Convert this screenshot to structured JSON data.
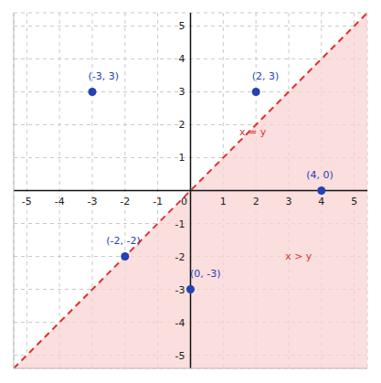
{
  "chart_data": {
    "type": "scatter",
    "xlim": [
      -5.4,
      5.4
    ],
    "ylim": [
      -5.4,
      5.4
    ],
    "xticks": [
      -5,
      -4,
      -3,
      -2,
      -1,
      0,
      1,
      2,
      3,
      4,
      5
    ],
    "yticks": [
      -5,
      -4,
      -3,
      -2,
      -1,
      0,
      1,
      2,
      3,
      4,
      5
    ],
    "grid": true,
    "boundary": {
      "x": [
        -5.4,
        5.4
      ],
      "y": [
        -5.4,
        5.4
      ],
      "color": "#e0312f",
      "line_style": "dashed"
    },
    "region": {
      "color": "#f9d3d3"
    },
    "points": {
      "x": [
        -3,
        2,
        4,
        -2,
        0
      ],
      "y": [
        3,
        3,
        0,
        -2,
        -3
      ],
      "labels": [
        "(-3, 3)",
        "(2, 3)",
        "(4, 0)",
        "(-2, -2)",
        "(0, -3)"
      ],
      "color": "#2541b2",
      "marker": "circle"
    },
    "annotations": [
      {
        "text": "x = y",
        "x": 1.9,
        "y": 1.8,
        "color": "#e0312f"
      },
      {
        "text": "x > y",
        "x": 3.3,
        "y": -2.0,
        "color": "#e0312f"
      }
    ]
  }
}
